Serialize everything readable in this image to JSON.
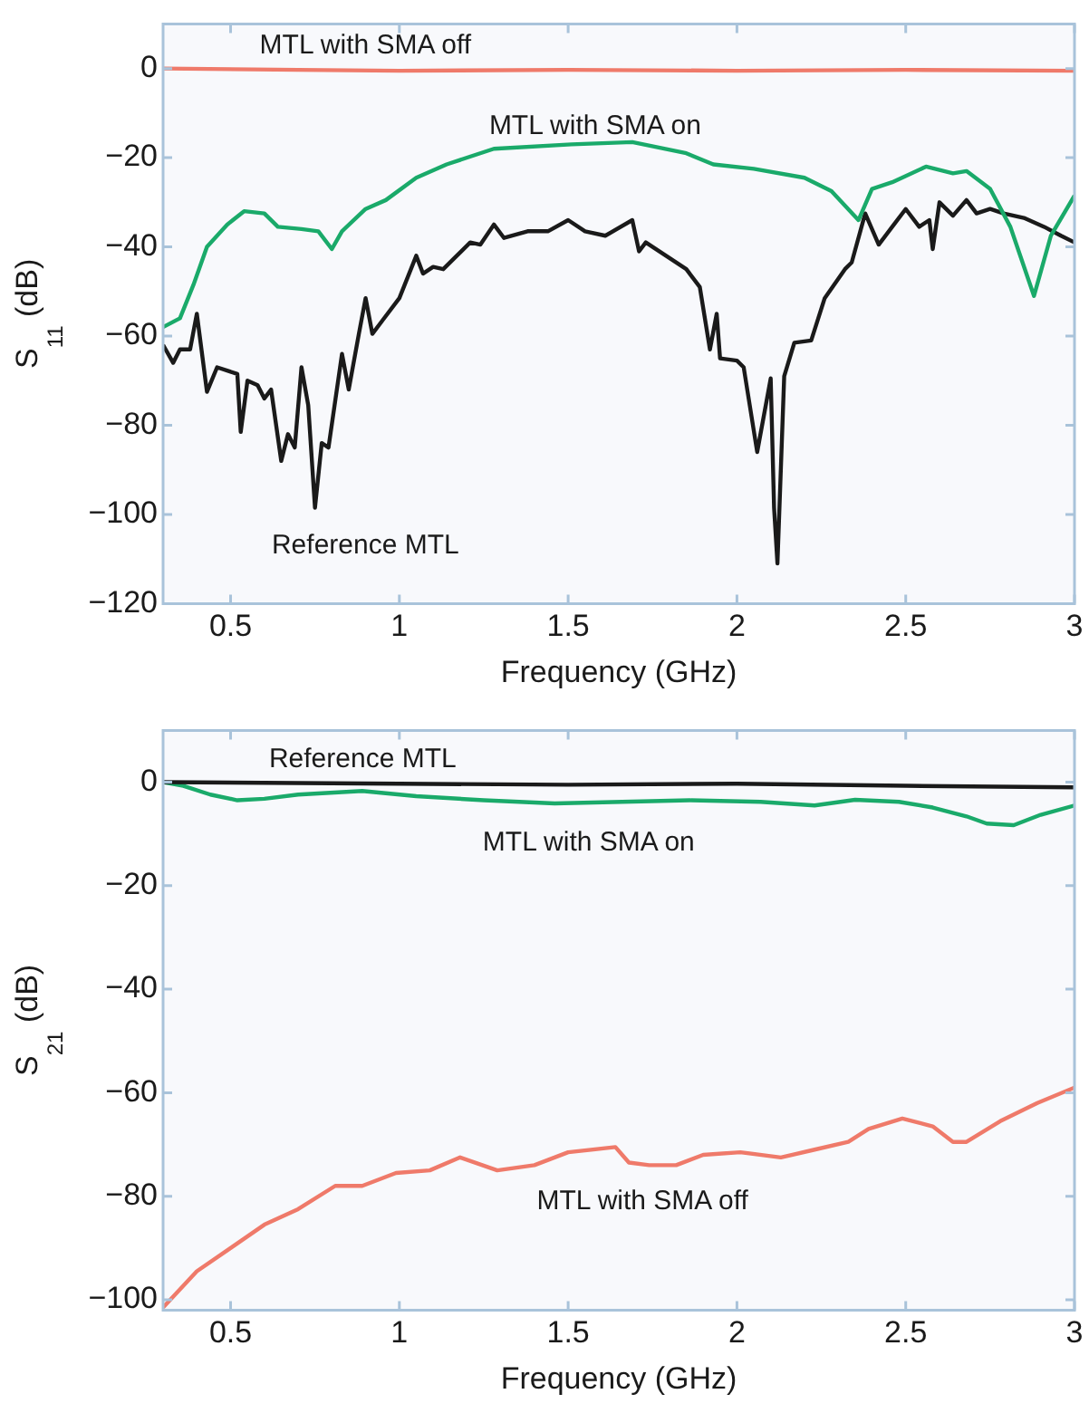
{
  "chart_data": [
    {
      "type": "line",
      "xlabel": "Frequency (GHz)",
      "ylabel": "S$_{11}$ (dB)",
      "xlim": [
        0.3,
        3
      ],
      "xticks": [
        0.5,
        1,
        1.5,
        2,
        2.5,
        3
      ],
      "ylim": [
        -120,
        10
      ],
      "yticks": [
        -120,
        -100,
        -80,
        -60,
        -40,
        -20,
        0
      ],
      "series": [
        {
          "name": "MTL with SMA off",
          "color": "#ef7a6a",
          "x": [
            0.3,
            0.7,
            1,
            1.5,
            2,
            2.5,
            3
          ],
          "values": [
            0,
            -0.3,
            -0.5,
            -0.3,
            -0.5,
            -0.3,
            -0.5
          ]
        },
        {
          "name": "MTL with SMA on",
          "color": "#1aaa6a",
          "x": [
            0.3,
            0.35,
            0.39,
            0.43,
            0.49,
            0.54,
            0.6,
            0.64,
            0.71,
            0.76,
            0.8,
            0.83,
            0.9,
            0.96,
            1.05,
            1.14,
            1.28,
            1.51,
            1.69,
            1.85,
            1.93,
            2.05,
            2.2,
            2.28,
            2.36,
            2.4,
            2.46,
            2.56,
            2.64,
            2.68,
            2.75,
            2.81,
            2.88,
            2.93,
            3.0
          ],
          "values": [
            -58,
            -56,
            -48.5,
            -40,
            -35,
            -32,
            -32.5,
            -35.5,
            -36,
            -36.5,
            -40.5,
            -36.5,
            -31.5,
            -29.5,
            -24.5,
            -21.5,
            -18,
            -17,
            -16.5,
            -19,
            -21.5,
            -22.5,
            -24.5,
            -27.5,
            -34,
            -27,
            -25.5,
            -22,
            -23.5,
            -23,
            -27,
            -35.5,
            -51,
            -37.5,
            -28.5
          ]
        },
        {
          "name": "Reference MTL",
          "color": "#1a1a1a",
          "x": [
            0.3,
            0.33,
            0.35,
            0.38,
            0.4,
            0.43,
            0.46,
            0.52,
            0.53,
            0.55,
            0.58,
            0.6,
            0.62,
            0.65,
            0.67,
            0.69,
            0.71,
            0.73,
            0.75,
            0.77,
            0.79,
            0.83,
            0.85,
            0.88,
            0.9,
            0.92,
            0.95,
            1.0,
            1.05,
            1.07,
            1.1,
            1.13,
            1.17,
            1.21,
            1.24,
            1.28,
            1.31,
            1.38,
            1.44,
            1.5,
            1.55,
            1.61,
            1.69,
            1.71,
            1.73,
            1.79,
            1.85,
            1.89,
            1.92,
            1.94,
            1.95,
            2.0,
            2.02,
            2.06,
            2.1,
            2.11,
            2.12,
            2.14,
            2.17,
            2.22,
            2.26,
            2.32,
            2.34,
            2.38,
            2.42,
            2.46,
            2.5,
            2.54,
            2.57,
            2.58,
            2.6,
            2.64,
            2.68,
            2.71,
            2.75,
            2.79,
            2.85,
            2.91,
            2.96,
            3.0
          ],
          "values": [
            -62,
            -66,
            -63,
            -63,
            -55,
            -72.5,
            -67,
            -68.5,
            -81.5,
            -70,
            -71,
            -74,
            -72,
            -88,
            -82,
            -85,
            -67,
            -75.5,
            -98.5,
            -84,
            -85,
            -64,
            -72,
            -59.5,
            -51.5,
            -59.5,
            -56.5,
            -51.5,
            -42,
            -46,
            -44.5,
            -45,
            -42,
            -39,
            -39.5,
            -35,
            -38,
            -36.5,
            -36.5,
            -34,
            -36.5,
            -37.5,
            -34,
            -41,
            -39,
            -42,
            -45,
            -49,
            -63,
            -55,
            -65,
            -65.5,
            -67,
            -86,
            -69.5,
            -98.5,
            -111,
            -69,
            -61.5,
            -61,
            -51.5,
            -45,
            -43.5,
            -32.5,
            -39.5,
            -35.5,
            -31.5,
            -35.5,
            -34,
            -40.5,
            -30,
            -33,
            -29.5,
            -32.5,
            -31.5,
            -32.5,
            -33.5,
            -35.5,
            -37.5,
            -39
          ]
        }
      ]
    },
    {
      "type": "line",
      "xlabel": "Frequency (GHz)",
      "ylabel": "S$_{21}$ (dB)",
      "xlim": [
        0.3,
        3
      ],
      "xticks": [
        0.5,
        1,
        1.5,
        2,
        2.5,
        3
      ],
      "ylim": [
        -102,
        10
      ],
      "yticks": [
        -100,
        -80,
        -60,
        -40,
        -20,
        0
      ],
      "series": [
        {
          "name": "Reference MTL",
          "color": "#1a1a1a",
          "x": [
            0.3,
            1,
            1.5,
            2,
            2.5,
            3
          ],
          "values": [
            0,
            -0.3,
            -0.5,
            -0.3,
            -0.7,
            -1
          ]
        },
        {
          "name": "MTL with SMA on",
          "color": "#1aaa6a",
          "x": [
            0.3,
            0.36,
            0.44,
            0.52,
            0.6,
            0.7,
            0.89,
            1.05,
            1.25,
            1.46,
            1.66,
            1.86,
            2.07,
            2.23,
            2.35,
            2.48,
            2.58,
            2.68,
            2.74,
            2.82,
            2.9,
            3.0
          ],
          "values": [
            0,
            -0.7,
            -2.4,
            -3.5,
            -3.2,
            -2.4,
            -1.7,
            -2.7,
            -3.5,
            -4.1,
            -3.8,
            -3.5,
            -3.8,
            -4.5,
            -3.4,
            -3.8,
            -4.9,
            -6.6,
            -8,
            -8.3,
            -6.3,
            -4.5
          ]
        },
        {
          "name": "MTL with SMA off",
          "color": "#ef7a6a",
          "x": [
            0.3,
            0.4,
            0.5,
            0.6,
            0.7,
            0.81,
            0.89,
            0.99,
            1.09,
            1.18,
            1.29,
            1.4,
            1.5,
            1.64,
            1.68,
            1.74,
            1.82,
            1.9,
            2.01,
            2.13,
            2.23,
            2.33,
            2.39,
            2.49,
            2.58,
            2.64,
            2.68,
            2.78,
            2.89,
            3.0
          ],
          "values": [
            -101.5,
            -94.5,
            -90,
            -85.5,
            -82.5,
            -78,
            -78,
            -75.5,
            -75,
            -72.5,
            -75,
            -74,
            -71.5,
            -70.5,
            -73.5,
            -74,
            -74,
            -72,
            -71.5,
            -72.5,
            -71,
            -69.5,
            -67,
            -65,
            -66.5,
            -69.5,
            -69.5,
            -65.5,
            -62,
            -59
          ]
        }
      ]
    }
  ]
}
